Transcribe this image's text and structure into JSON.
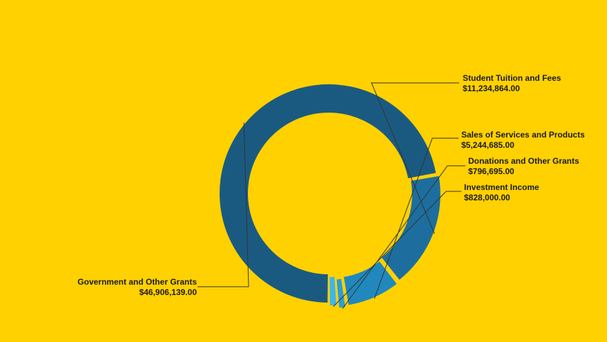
{
  "chart_data": {
    "type": "pie",
    "variant": "donut",
    "categories": [
      "Government and Other Grants",
      "Student Tuition and Fees",
      "Sales of Services and Products",
      "Donations and Other Grants",
      "Investment Income"
    ],
    "values": [
      46906139.0,
      11234864.0,
      5244685.0,
      796695.0,
      828000.0
    ],
    "value_labels": [
      "$46,906,139.00",
      "$11,234,864.00",
      "$5,244,685.00",
      "$796,695.00",
      "$828,000.00"
    ],
    "colors": [
      "#1B5A80",
      "#1D6E9E",
      "#2088BD",
      "#2A9ED8",
      "#3DB6EE"
    ],
    "background": "#FFD100",
    "title": "",
    "legend": "none"
  }
}
